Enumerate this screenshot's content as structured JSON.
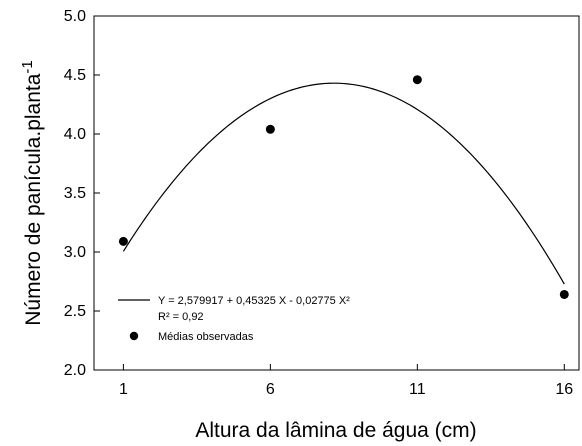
{
  "chart_data": {
    "type": "scatter",
    "xlabel": "Altura da lâmina de água (cm)",
    "ylabel": "Número de panícula.planta",
    "ylabel_sup": "-1",
    "xlim": [
      0,
      16.5
    ],
    "ylim": [
      2.0,
      5.0
    ],
    "x_ticks": [
      1,
      6,
      11,
      16
    ],
    "y_ticks": [
      "2.0",
      "2.5",
      "3.0",
      "3.5",
      "4.0",
      "4.5",
      "5.0"
    ],
    "grid": false,
    "legend_position": "bottom-left",
    "fit": {
      "label": "Y = 2,579917 + 0,45325 X - 0,02775 X²",
      "r2_label": "R² = 0,92",
      "coefficients": [
        2.579917,
        0.45325,
        -0.02775
      ],
      "x_range": [
        1,
        16
      ]
    },
    "series": [
      {
        "name": "Médias observadas",
        "x": [
          1,
          6,
          11,
          16
        ],
        "y": [
          3.09,
          4.04,
          4.46,
          2.64
        ]
      }
    ]
  }
}
